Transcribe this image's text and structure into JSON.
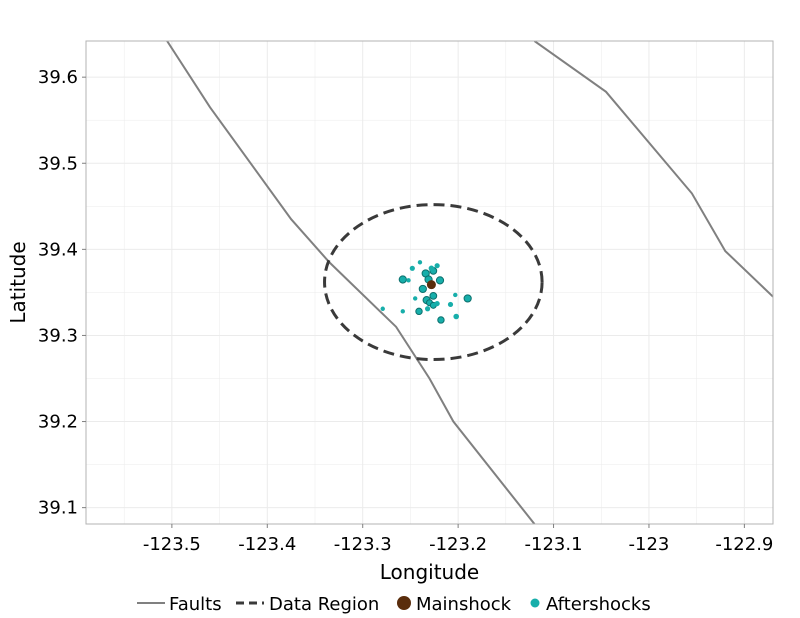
{
  "chart_data": {
    "type": "scatter",
    "title": "",
    "xlabel": "Longitude",
    "ylabel": "Latitude",
    "xlim": [
      -123.59,
      -122.87
    ],
    "ylim": [
      39.081,
      39.642
    ],
    "xticks": [
      -123.5,
      -123.4,
      -123.3,
      -123.2,
      -123.1,
      -123.0,
      -122.9
    ],
    "xtick_labels": [
      "-123.5",
      "-123.4",
      "-123.3",
      "-123.2",
      "-123.1",
      "-123",
      "-122.9"
    ],
    "yticks": [
      39.1,
      39.2,
      39.3,
      39.4,
      39.5,
      39.6
    ],
    "ytick_labels": [
      "39.1",
      "39.2",
      "39.3",
      "39.4",
      "39.5",
      "39.6"
    ],
    "grid": true,
    "legend_position": "bottom",
    "colors": {
      "faults": "#808080",
      "data_region": "#3a3a3a",
      "mainshock": "#5a2d0c",
      "aftershocks": "#17aeaa",
      "aftershock_outline": "#0c6f6c",
      "grid": "#ebebeb",
      "panel_border": "#b3b3b3"
    },
    "series": [
      {
        "name": "Faults",
        "kind": "line",
        "lines": [
          [
            [
              -123.505,
              39.642
            ],
            [
              -123.46,
              39.565
            ],
            [
              -123.375,
              39.435
            ],
            [
              -123.335,
              39.385
            ],
            [
              -123.265,
              39.31
            ],
            [
              -123.23,
              39.25
            ],
            [
              -123.205,
              39.2
            ],
            [
              -123.12,
              39.081
            ]
          ],
          [
            [
              -123.12,
              39.642
            ],
            [
              -123.045,
              39.583
            ],
            [
              -122.955,
              39.465
            ],
            [
              -122.92,
              39.398
            ],
            [
              -122.87,
              39.345
            ]
          ]
        ]
      },
      {
        "name": "Data Region",
        "kind": "dashed-ellipse",
        "center": [
          -123.226,
          39.362
        ],
        "radius_lon": 0.114,
        "radius_lat": 0.09
      },
      {
        "name": "Mainshock",
        "kind": "point",
        "points": [
          [
            -123.228,
            39.359
          ]
        ]
      },
      {
        "name": "Aftershocks",
        "kind": "points",
        "points": [
          {
            "x": -123.234,
            "y": 39.372,
            "m": 3.0
          },
          {
            "x": -123.226,
            "y": 39.375,
            "m": 2.8
          },
          {
            "x": -123.231,
            "y": 39.365,
            "m": 3.0
          },
          {
            "x": -123.222,
            "y": 39.381,
            "m": 2.0
          },
          {
            "x": -123.24,
            "y": 39.385,
            "m": 1.6
          },
          {
            "x": -123.228,
            "y": 39.378,
            "m": 2.2
          },
          {
            "x": -123.219,
            "y": 39.364,
            "m": 3.0
          },
          {
            "x": -123.258,
            "y": 39.365,
            "m": 3.0
          },
          {
            "x": -123.248,
            "y": 39.378,
            "m": 2.0
          },
          {
            "x": -123.237,
            "y": 39.354,
            "m": 3.0
          },
          {
            "x": -123.252,
            "y": 39.364,
            "m": 1.6
          },
          {
            "x": -123.226,
            "y": 39.346,
            "m": 2.8
          },
          {
            "x": -123.233,
            "y": 39.341,
            "m": 3.0
          },
          {
            "x": -123.245,
            "y": 39.343,
            "m": 1.6
          },
          {
            "x": -123.23,
            "y": 39.338,
            "m": 2.4
          },
          {
            "x": -123.226,
            "y": 39.335,
            "m": 2.4
          },
          {
            "x": -123.222,
            "y": 39.337,
            "m": 2.0
          },
          {
            "x": -123.232,
            "y": 39.331,
            "m": 2.0
          },
          {
            "x": -123.241,
            "y": 39.328,
            "m": 2.6
          },
          {
            "x": -123.258,
            "y": 39.328,
            "m": 1.6
          },
          {
            "x": -123.279,
            "y": 39.331,
            "m": 1.6
          },
          {
            "x": -123.19,
            "y": 39.343,
            "m": 3.0
          },
          {
            "x": -123.203,
            "y": 39.347,
            "m": 1.6
          },
          {
            "x": -123.208,
            "y": 39.336,
            "m": 2.0
          },
          {
            "x": -123.202,
            "y": 39.322,
            "m": 2.2
          },
          {
            "x": -123.218,
            "y": 39.318,
            "m": 2.6
          }
        ]
      }
    ]
  }
}
